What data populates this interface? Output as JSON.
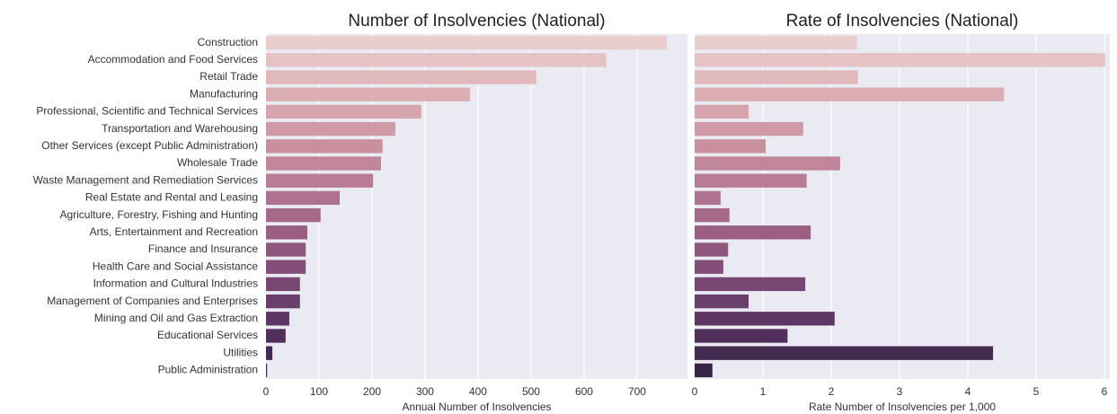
{
  "chart_data": [
    {
      "type": "barh",
      "title": "Number of Insolvencies (National)",
      "x_label": "Annual Number of Insolvencies",
      "categories": [
        "Construction",
        "Accommodation and Food Services",
        "Retail Trade",
        "Manufacturing",
        "Professional, Scientific and Technical Services",
        "Transportation and Warehousing",
        "Other Services (except Public Administration)",
        "Wholesale Trade",
        "Waste Management and Remediation Services",
        "Real Estate and Rental and Leasing",
        "Agriculture, Forestry, Fishing and Hunting",
        "Arts, Entertainment and Recreation",
        "Finance and Insurance",
        "Health Care and Social Assistance",
        "Information and Cultural Industries",
        "Management of Companies and Enterprises",
        "Mining and Oil and Gas Extraction",
        "Educational Services",
        "Utilities",
        "Public Administration"
      ],
      "values": [
        756,
        642,
        510,
        385,
        293,
        244,
        220,
        217,
        202,
        139,
        103,
        78,
        75,
        75,
        64,
        64,
        44,
        37,
        12,
        2
      ],
      "colors": [
        "#e9cdcd",
        "#e5c3c4",
        "#e0b9bc",
        "#dbaeb4",
        "#d5a4ad",
        "#cf9aa6",
        "#c8909f",
        "#c08699",
        "#b87c94",
        "#af728e",
        "#a56889",
        "#9a5f83",
        "#8f567e",
        "#834e78",
        "#774672",
        "#6a3e6b",
        "#5d3763",
        "#50305a",
        "#432a50",
        "#372444"
      ],
      "xlim": [
        0,
        795
      ],
      "xticks": [
        0,
        100,
        200,
        300,
        400,
        500,
        600,
        700
      ],
      "grid": true
    },
    {
      "type": "barh",
      "title": "Rate of Insolvencies (National)",
      "x_label": "Rate Number of Insolvencies per 1,000",
      "values": [
        2.38,
        6.01,
        2.39,
        4.53,
        0.79,
        1.59,
        1.04,
        2.13,
        1.64,
        0.38,
        0.51,
        1.7,
        0.49,
        0.42,
        1.62,
        0.79,
        2.05,
        1.36,
        4.37,
        0.26
      ],
      "colors": [
        "#e9cdcd",
        "#e5c3c4",
        "#e0b9bc",
        "#dbaeb4",
        "#d5a4ad",
        "#cf9aa6",
        "#c8909f",
        "#c08699",
        "#b87c94",
        "#af728e",
        "#a56889",
        "#9a5f83",
        "#8f567e",
        "#834e78",
        "#774672",
        "#6a3e6b",
        "#5d3763",
        "#50305a",
        "#432a50",
        "#372444"
      ],
      "xlim": [
        0,
        6.08
      ],
      "xticks": [
        0,
        1,
        2,
        3,
        4,
        5,
        6
      ],
      "grid": true
    }
  ]
}
